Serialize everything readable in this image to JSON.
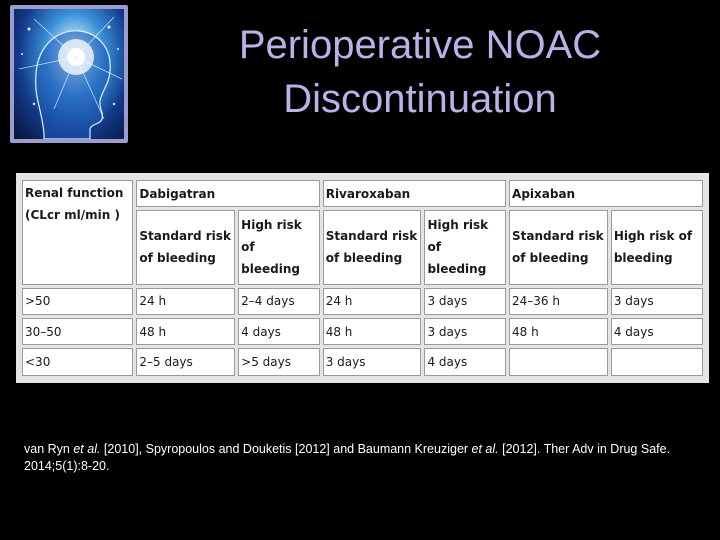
{
  "title": {
    "line1": "Perioperative NOAC",
    "line2": "Discontinuation"
  },
  "table": {
    "header_renal": "Renal function (CLcr ml/min )",
    "drugs": [
      "Dabigatran",
      "Rivaroxaban",
      "Apixaban"
    ],
    "risk_standard": "Standard risk of bleeding",
    "risk_high": "High risk of bleeding",
    "rows": [
      {
        "renal": ">50",
        "cells": [
          "24 h",
          "2–4 days",
          "24 h",
          "3 days",
          "24–36 h",
          "3 days"
        ]
      },
      {
        "renal": "30–50",
        "cells": [
          "48 h",
          "4 days",
          "48 h",
          "3 days",
          "48 h",
          "4 days"
        ]
      },
      {
        "renal": "<30",
        "cells": [
          "2–5 days",
          ">5 days",
          "3 days",
          "4 days",
          "",
          ""
        ]
      }
    ]
  },
  "citation": {
    "p1": "van Ryn ",
    "etal1": "et al.",
    "p2": " [2010], Spyropoulos and Douketis [2012] and Baumann Kreuziger ",
    "etal2": "et al.",
    "p3": " [2012]. Ther Adv in Drug Safe. 2014;5(1):8-20."
  },
  "colors": {
    "background": "#000000",
    "title": "#b8b2e6",
    "frame": "#9c9ccf"
  },
  "icons": {
    "logo": "glowing-head-brain-icon"
  }
}
